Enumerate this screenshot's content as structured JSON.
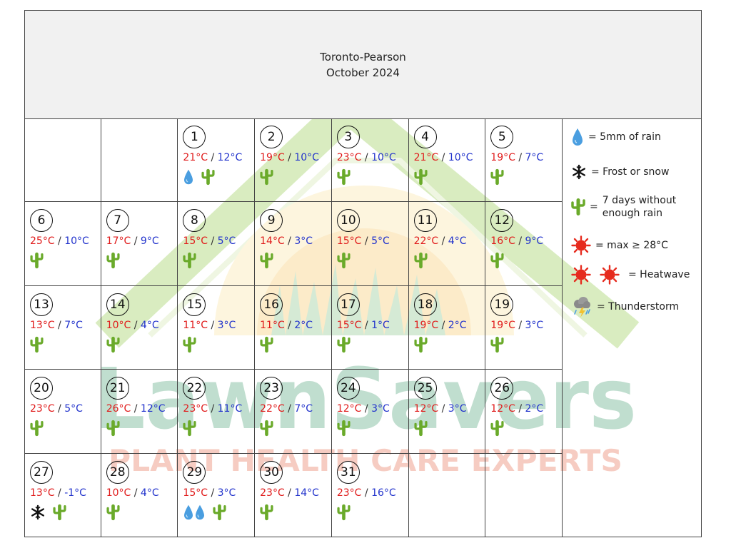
{
  "header": {
    "station": "Toronto-Pearson",
    "month": "October 2024"
  },
  "watermark": {
    "brand": "LawnSavers",
    "tagline": "PLANT HEALTH CARE EXPERTS"
  },
  "colors": {
    "max_temp": "#e01b1b",
    "min_temp": "#2233cc",
    "cactus": "#6aaa2a",
    "raindrop": "#4a9ee0",
    "sun": "#e62b1e"
  },
  "legend": {
    "rain": "= 5mm of rain",
    "frost": "= Frost or snow",
    "drought_line1": "7 days without",
    "drought_line2": "enough rain",
    "drought_eq": "=",
    "hot": "= max ≥ 28°C",
    "heatwave": "= Heatwave",
    "thunder": "= Thunderstorm"
  },
  "days": [
    {
      "day": "1",
      "max": "21°C",
      "min": "12°C",
      "icons": [
        "raindrop-icon",
        "cactus-icon"
      ]
    },
    {
      "day": "2",
      "max": "19°C",
      "min": "10°C",
      "icons": [
        "cactus-icon"
      ]
    },
    {
      "day": "3",
      "max": "23°C",
      "min": "10°C",
      "icons": [
        "cactus-icon"
      ]
    },
    {
      "day": "4",
      "max": "21°C",
      "min": "10°C",
      "icons": [
        "cactus-icon"
      ]
    },
    {
      "day": "5",
      "max": "19°C",
      "min": "7°C",
      "icons": [
        "cactus-icon"
      ]
    },
    {
      "day": "6",
      "max": "25°C",
      "min": "10°C",
      "icons": [
        "cactus-icon"
      ]
    },
    {
      "day": "7",
      "max": "17°C",
      "min": "9°C",
      "icons": [
        "cactus-icon"
      ]
    },
    {
      "day": "8",
      "max": "15°C",
      "min": "5°C",
      "icons": [
        "cactus-icon"
      ]
    },
    {
      "day": "9",
      "max": "14°C",
      "min": "3°C",
      "icons": [
        "cactus-icon"
      ]
    },
    {
      "day": "10",
      "max": "15°C",
      "min": "5°C",
      "icons": [
        "cactus-icon"
      ]
    },
    {
      "day": "11",
      "max": "22°C",
      "min": "4°C",
      "icons": [
        "cactus-icon"
      ]
    },
    {
      "day": "12",
      "max": "16°C",
      "min": "9°C",
      "icons": [
        "cactus-icon"
      ]
    },
    {
      "day": "13",
      "max": "13°C",
      "min": "7°C",
      "icons": [
        "cactus-icon"
      ]
    },
    {
      "day": "14",
      "max": "10°C",
      "min": "4°C",
      "icons": [
        "cactus-icon"
      ]
    },
    {
      "day": "15",
      "max": "11°C",
      "min": "3°C",
      "icons": [
        "cactus-icon"
      ]
    },
    {
      "day": "16",
      "max": "11°C",
      "min": "2°C",
      "icons": [
        "cactus-icon"
      ]
    },
    {
      "day": "17",
      "max": "15°C",
      "min": "1°C",
      "icons": [
        "cactus-icon"
      ]
    },
    {
      "day": "18",
      "max": "19°C",
      "min": "2°C",
      "icons": [
        "cactus-icon"
      ]
    },
    {
      "day": "19",
      "max": "19°C",
      "min": "3°C",
      "icons": [
        "cactus-icon"
      ]
    },
    {
      "day": "20",
      "max": "23°C",
      "min": "5°C",
      "icons": [
        "cactus-icon"
      ]
    },
    {
      "day": "21",
      "max": "26°C",
      "min": "12°C",
      "icons": [
        "cactus-icon"
      ]
    },
    {
      "day": "22",
      "max": "23°C",
      "min": "11°C",
      "icons": [
        "cactus-icon"
      ]
    },
    {
      "day": "23",
      "max": "22°C",
      "min": "7°C",
      "icons": [
        "cactus-icon"
      ]
    },
    {
      "day": "24",
      "max": "12°C",
      "min": "3°C",
      "icons": [
        "cactus-icon"
      ]
    },
    {
      "day": "25",
      "max": "12°C",
      "min": "3°C",
      "icons": [
        "cactus-icon"
      ]
    },
    {
      "day": "26",
      "max": "12°C",
      "min": "2°C",
      "icons": [
        "cactus-icon"
      ]
    },
    {
      "day": "27",
      "max": "13°C",
      "min": "-1°C",
      "icons": [
        "snowflake-icon",
        "cactus-icon"
      ]
    },
    {
      "day": "28",
      "max": "10°C",
      "min": "4°C",
      "icons": [
        "cactus-icon"
      ]
    },
    {
      "day": "29",
      "max": "15°C",
      "min": "3°C",
      "icons": [
        "raindrop-icon",
        "raindrop-icon",
        "cactus-icon"
      ]
    },
    {
      "day": "30",
      "max": "23°C",
      "min": "14°C",
      "icons": [
        "cactus-icon"
      ]
    },
    {
      "day": "31",
      "max": "23°C",
      "min": "16°C",
      "icons": [
        "cactus-icon"
      ]
    }
  ]
}
